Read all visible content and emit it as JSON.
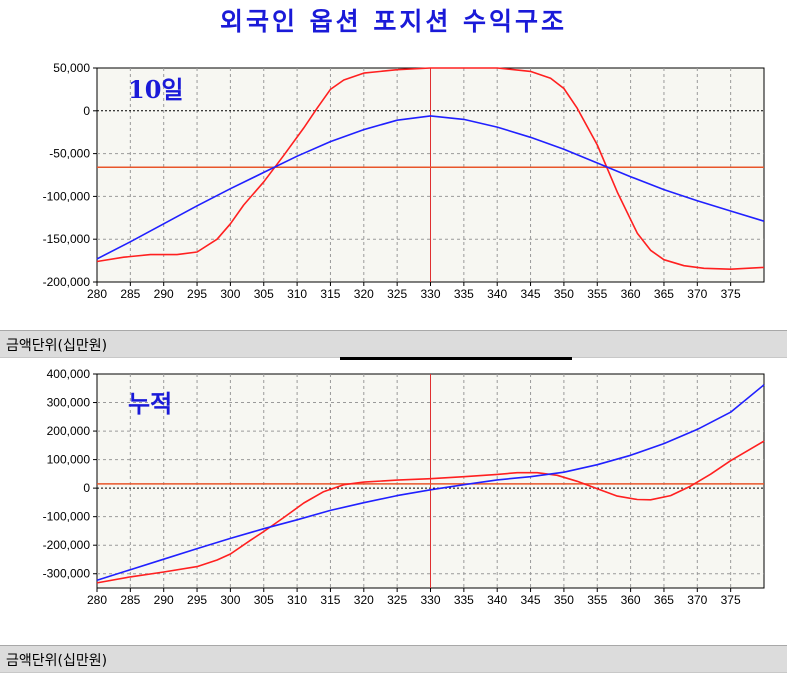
{
  "title": "외국인 옵션 포지션 수익구조",
  "unit_label_top": "금액단위(십만원)",
  "unit_label_bottom": "금액단위(십만원)",
  "chart_data": [
    {
      "type": "line",
      "label": "10일",
      "xlim": [
        280,
        380
      ],
      "ylim": [
        -200000,
        50000
      ],
      "x_ticks": [
        280,
        285,
        290,
        295,
        300,
        305,
        310,
        315,
        320,
        325,
        330,
        335,
        340,
        345,
        350,
        355,
        360,
        365,
        370,
        375
      ],
      "y_ticks": [
        50000,
        0,
        -50000,
        -100000,
        -150000,
        -200000
      ],
      "y_tick_labels": [
        "50,000",
        "0",
        "-50,000",
        "-100,000",
        "-150,000",
        "-200,000"
      ],
      "grid": true,
      "vline_x": 330,
      "hline_y": -66000,
      "series": [
        {
          "color": "#ff2020",
          "x": [
            280,
            284,
            288,
            292,
            295,
            298,
            300,
            302,
            305,
            308,
            311,
            313,
            315,
            317,
            320,
            325,
            330,
            335,
            340,
            345,
            348,
            350,
            352,
            355,
            358,
            361,
            363,
            365,
            368,
            371,
            375,
            380
          ],
          "y": [
            -176000,
            -171000,
            -168000,
            -168000,
            -165000,
            -150000,
            -132000,
            -110000,
            -83000,
            -52000,
            -20000,
            3000,
            25000,
            36000,
            44000,
            48000,
            50000,
            50000,
            50000,
            46000,
            38000,
            26000,
            3000,
            -40000,
            -95000,
            -143000,
            -163000,
            -174000,
            -181000,
            -184000,
            -185000,
            -183000
          ]
        },
        {
          "color": "#2020ff",
          "x": [
            280,
            285,
            290,
            295,
            300,
            305,
            310,
            315,
            320,
            325,
            330,
            335,
            340,
            345,
            350,
            355,
            360,
            365,
            370,
            375,
            380
          ],
          "y": [
            -173000,
            -153000,
            -132000,
            -111000,
            -91000,
            -72000,
            -53000,
            -36000,
            -22000,
            -11000,
            -6000,
            -10000,
            -19000,
            -31000,
            -45000,
            -61000,
            -77000,
            -92000,
            -105000,
            -117000,
            -129000
          ]
        }
      ]
    },
    {
      "type": "line",
      "label": "누적",
      "xlim": [
        280,
        380
      ],
      "ylim": [
        -350000,
        400000
      ],
      "x_ticks": [
        280,
        285,
        290,
        295,
        300,
        305,
        310,
        315,
        320,
        325,
        330,
        335,
        340,
        345,
        350,
        355,
        360,
        365,
        370,
        375
      ],
      "y_ticks": [
        400000,
        300000,
        200000,
        100000,
        0,
        -100000,
        -200000,
        -300000
      ],
      "y_tick_labels": [
        "400,000",
        "300,000",
        "200,000",
        "100,000",
        "0",
        "-100,000",
        "-200,000",
        "-300,000"
      ],
      "grid": true,
      "vline_x": 330,
      "hline_y": 15000,
      "series": [
        {
          "color": "#ff2020",
          "x": [
            280,
            285,
            290,
            295,
            298,
            300,
            303,
            305,
            308,
            311,
            314,
            317,
            320,
            325,
            330,
            335,
            340,
            343,
            346,
            349,
            352,
            355,
            358,
            361,
            363,
            366,
            369,
            372,
            375,
            380
          ],
          "y": [
            -332000,
            -311000,
            -294000,
            -275000,
            -252000,
            -231000,
            -183000,
            -152000,
            -103000,
            -52000,
            -12000,
            12000,
            21000,
            28000,
            33000,
            40000,
            48000,
            54000,
            54000,
            45000,
            24000,
            -2000,
            -28000,
            -40000,
            -41000,
            -26000,
            7000,
            49000,
            96000,
            165000
          ]
        },
        {
          "color": "#2020ff",
          "x": [
            280,
            285,
            290,
            295,
            300,
            305,
            310,
            315,
            320,
            325,
            330,
            335,
            340,
            345,
            350,
            355,
            360,
            365,
            370,
            375,
            380
          ],
          "y": [
            -323000,
            -286000,
            -249000,
            -212000,
            -176000,
            -142000,
            -111000,
            -78000,
            -51000,
            -26000,
            -6000,
            12000,
            29000,
            40000,
            56000,
            82000,
            115000,
            156000,
            206000,
            266000,
            362000
          ]
        }
      ]
    }
  ]
}
